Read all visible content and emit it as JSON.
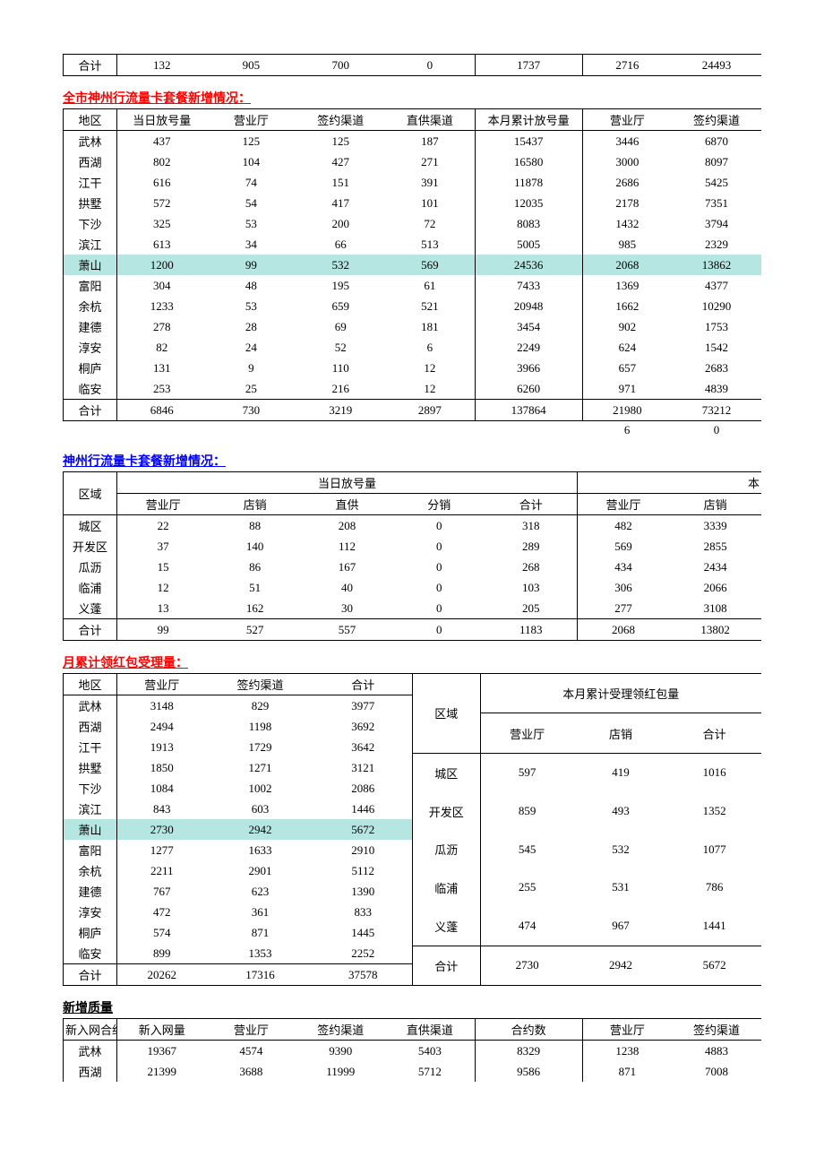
{
  "summaryRow": {
    "label": "合计",
    "cells": [
      "132",
      "905",
      "700",
      "0",
      "1737",
      "2716",
      "24493"
    ]
  },
  "table1": {
    "title": "全市神州行流量卡套餐新增情况：",
    "color": "red",
    "headers": [
      "地区",
      "当日放号量",
      "营业厅",
      "签约渠道",
      "直供渠道",
      "本月累计放号量",
      "营业厅",
      "签约渠道"
    ],
    "rows": [
      {
        "r": "武林",
        "c": [
          "437",
          "125",
          "125",
          "187",
          "15437",
          "3446",
          "6870"
        ]
      },
      {
        "r": "西湖",
        "c": [
          "802",
          "104",
          "427",
          "271",
          "16580",
          "3000",
          "8097"
        ]
      },
      {
        "r": "江干",
        "c": [
          "616",
          "74",
          "151",
          "391",
          "11878",
          "2686",
          "5425"
        ]
      },
      {
        "r": "拱墅",
        "c": [
          "572",
          "54",
          "417",
          "101",
          "12035",
          "2178",
          "7351"
        ]
      },
      {
        "r": "下沙",
        "c": [
          "325",
          "53",
          "200",
          "72",
          "8083",
          "1432",
          "3794"
        ]
      },
      {
        "r": "滨江",
        "c": [
          "613",
          "34",
          "66",
          "513",
          "5005",
          "985",
          "2329"
        ]
      },
      {
        "r": "萧山",
        "c": [
          "1200",
          "99",
          "532",
          "569",
          "24536",
          "2068",
          "13862"
        ],
        "hl": true
      },
      {
        "r": "富阳",
        "c": [
          "304",
          "48",
          "195",
          "61",
          "7433",
          "1369",
          "4377"
        ]
      },
      {
        "r": "余杭",
        "c": [
          "1233",
          "53",
          "659",
          "521",
          "20948",
          "1662",
          "10290"
        ]
      },
      {
        "r": "建德",
        "c": [
          "278",
          "28",
          "69",
          "181",
          "3454",
          "902",
          "1753"
        ]
      },
      {
        "r": "淳安",
        "c": [
          "82",
          "24",
          "52",
          "6",
          "2249",
          "624",
          "1542"
        ]
      },
      {
        "r": "桐庐",
        "c": [
          "131",
          "9",
          "110",
          "12",
          "3966",
          "657",
          "2683"
        ]
      },
      {
        "r": "临安",
        "c": [
          "253",
          "25",
          "216",
          "12",
          "6260",
          "971",
          "4839"
        ]
      }
    ],
    "total": {
      "r": "合计",
      "c": [
        "6846",
        "730",
        "3219",
        "2897",
        "137864",
        "21980",
        "73212"
      ]
    },
    "extra": [
      "",
      "",
      "",
      "",
      "",
      "6",
      "0"
    ]
  },
  "table2": {
    "title": "神州行流量卡套餐新增情况：",
    "color": "blue",
    "topHeaders": {
      "region": "区域",
      "span": "当日放号量",
      "right": "本"
    },
    "subHeaders": [
      "营业厅",
      "店销",
      "直供",
      "分销",
      "合计",
      "营业厅",
      "店销"
    ],
    "rows": [
      {
        "r": "城区",
        "c": [
          "22",
          "88",
          "208",
          "0",
          "318",
          "482",
          "3339"
        ]
      },
      {
        "r": "开发区",
        "c": [
          "37",
          "140",
          "112",
          "0",
          "289",
          "569",
          "2855"
        ]
      },
      {
        "r": "瓜沥",
        "c": [
          "15",
          "86",
          "167",
          "0",
          "268",
          "434",
          "2434"
        ]
      },
      {
        "r": "临浦",
        "c": [
          "12",
          "51",
          "40",
          "0",
          "103",
          "306",
          "2066"
        ]
      },
      {
        "r": "义蓬",
        "c": [
          "13",
          "162",
          "30",
          "0",
          "205",
          "277",
          "3108"
        ]
      }
    ],
    "total": {
      "r": "合计",
      "c": [
        "99",
        "527",
        "557",
        "0",
        "1183",
        "2068",
        "13802"
      ]
    }
  },
  "table3": {
    "title": "月累计领红包受理量：",
    "color": "red",
    "left": {
      "headers": [
        "地区",
        "营业厅",
        "签约渠道",
        "合计"
      ],
      "rows": [
        {
          "r": "武林",
          "c": [
            "3148",
            "829",
            "3977"
          ]
        },
        {
          "r": "西湖",
          "c": [
            "2494",
            "1198",
            "3692"
          ]
        },
        {
          "r": "江干",
          "c": [
            "1913",
            "1729",
            "3642"
          ]
        },
        {
          "r": "拱墅",
          "c": [
            "1850",
            "1271",
            "3121"
          ]
        },
        {
          "r": "下沙",
          "c": [
            "1084",
            "1002",
            "2086"
          ]
        },
        {
          "r": "滨江",
          "c": [
            "843",
            "603",
            "1446"
          ]
        },
        {
          "r": "萧山",
          "c": [
            "2730",
            "2942",
            "5672"
          ],
          "hl": true
        },
        {
          "r": "富阳",
          "c": [
            "1277",
            "1633",
            "2910"
          ]
        },
        {
          "r": "余杭",
          "c": [
            "2211",
            "2901",
            "5112"
          ]
        },
        {
          "r": "建德",
          "c": [
            "767",
            "623",
            "1390"
          ]
        },
        {
          "r": "淳安",
          "c": [
            "472",
            "361",
            "833"
          ]
        },
        {
          "r": "桐庐",
          "c": [
            "574",
            "871",
            "1445"
          ]
        },
        {
          "r": "临安",
          "c": [
            "899",
            "1353",
            "2252"
          ]
        }
      ],
      "total": {
        "r": "合计",
        "c": [
          "20262",
          "17316",
          "37578"
        ]
      }
    },
    "right": {
      "topHeader": {
        "region": "区域",
        "span": "本月累计受理领红包量"
      },
      "subHeaders": [
        "营业厅",
        "店销",
        "合计"
      ],
      "rows": [
        {
          "r": "城区",
          "c": [
            "597",
            "419",
            "1016"
          ]
        },
        {
          "r": "开发区",
          "c": [
            "859",
            "493",
            "1352"
          ]
        },
        {
          "r": "瓜沥",
          "c": [
            "545",
            "532",
            "1077"
          ]
        },
        {
          "r": "临浦",
          "c": [
            "255",
            "531",
            "786"
          ]
        },
        {
          "r": "义蓬",
          "c": [
            "474",
            "967",
            "1441"
          ]
        }
      ],
      "total": {
        "r": "合计",
        "c": [
          "2730",
          "2942",
          "5672"
        ]
      }
    }
  },
  "table4": {
    "title": "新增质量",
    "color": "black",
    "headers": [
      "新入网合约",
      "新入网量",
      "营业厅",
      "签约渠道",
      "直供渠道",
      "合约数",
      "营业厅",
      "签约渠道"
    ],
    "rows": [
      {
        "r": "武林",
        "c": [
          "19367",
          "4574",
          "9390",
          "5403",
          "8329",
          "1238",
          "4883"
        ]
      },
      {
        "r": "西湖",
        "c": [
          "21399",
          "3688",
          "11999",
          "5712",
          "9586",
          "871",
          "7008"
        ]
      }
    ]
  }
}
